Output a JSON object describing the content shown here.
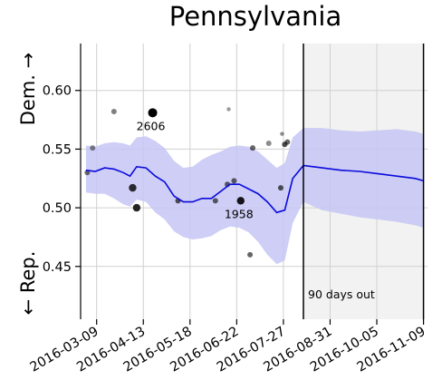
{
  "chart_data": {
    "type": "line",
    "title": "Pennsylvania",
    "ylabel_top": "Dem. →",
    "ylabel_bottom": "← Rep.",
    "ylim": [
      0.405,
      0.64
    ],
    "xlim": [
      "2016-02-26",
      "2016-11-12"
    ],
    "yticks": [
      0.45,
      0.5,
      0.55,
      0.6
    ],
    "ytick_labels": [
      "0.45",
      "0.50",
      "0.55",
      "0.60"
    ],
    "xticks": [
      "2016-03-09",
      "2016-04-13",
      "2016-05-18",
      "2016-06-22",
      "2016-07-27",
      "2016-08-31",
      "2016-10-05",
      "2016-11-09"
    ],
    "grid": true,
    "colors": {
      "line": "#0a0adc",
      "band": "#c6c6f5",
      "shade": "#f2f2f2",
      "points": "#000000"
    },
    "shaded_region": {
      "start": "2016-08-11",
      "end": "2016-11-09",
      "label": "90 days out"
    },
    "series": [
      {
        "x": [
          "2016-03-01",
          "2016-03-08",
          "2016-03-15",
          "2016-03-22",
          "2016-03-29",
          "2016-04-03",
          "2016-04-08",
          "2016-04-15",
          "2016-04-22",
          "2016-04-29",
          "2016-05-06",
          "2016-05-13",
          "2016-05-20",
          "2016-05-27",
          "2016-06-03",
          "2016-06-10",
          "2016-06-17",
          "2016-06-24",
          "2016-07-01",
          "2016-07-08",
          "2016-07-15",
          "2016-07-22",
          "2016-07-28",
          "2016-08-03",
          "2016-08-11",
          "2016-08-25",
          "2016-09-08",
          "2016-09-22",
          "2016-10-06",
          "2016-10-20",
          "2016-11-03",
          "2016-11-09"
        ],
        "y": [
          0.532,
          0.531,
          0.534,
          0.533,
          0.53,
          0.527,
          0.535,
          0.534,
          0.527,
          0.522,
          0.51,
          0.505,
          0.505,
          0.508,
          0.508,
          0.514,
          0.52,
          0.52,
          0.516,
          0.512,
          0.505,
          0.496,
          0.498,
          0.525,
          0.536,
          0.534,
          0.532,
          0.531,
          0.529,
          0.527,
          0.525,
          0.523
        ],
        "lower": [
          0.513,
          0.512,
          0.512,
          0.508,
          0.503,
          0.501,
          0.507,
          0.505,
          0.496,
          0.49,
          0.48,
          0.475,
          0.473,
          0.474,
          0.476,
          0.481,
          0.484,
          0.483,
          0.479,
          0.471,
          0.46,
          0.452,
          0.455,
          0.487,
          0.505,
          0.498,
          0.495,
          0.492,
          0.49,
          0.488,
          0.485,
          0.483
        ],
        "upper": [
          0.553,
          0.552,
          0.555,
          0.556,
          0.555,
          0.553,
          0.56,
          0.561,
          0.557,
          0.551,
          0.54,
          0.534,
          0.535,
          0.541,
          0.545,
          0.548,
          0.552,
          0.553,
          0.552,
          0.548,
          0.541,
          0.534,
          0.538,
          0.56,
          0.568,
          0.568,
          0.566,
          0.565,
          0.566,
          0.567,
          0.565,
          0.563
        ]
      }
    ],
    "points": [
      {
        "x": "2016-03-02",
        "y": 0.53,
        "size": "small",
        "shade": 0.55
      },
      {
        "x": "2016-03-06",
        "y": 0.551,
        "size": "small",
        "shade": 0.45
      },
      {
        "x": "2016-03-22",
        "y": 0.582,
        "size": "small",
        "shade": 0.5
      },
      {
        "x": "2016-04-05",
        "y": 0.517,
        "size": "medium",
        "shade": 0.8
      },
      {
        "x": "2016-04-08",
        "y": 0.5,
        "size": "medium",
        "shade": 0.85
      },
      {
        "x": "2016-04-20",
        "y": 0.581,
        "size": "large",
        "shade": 1.0,
        "label": "2606"
      },
      {
        "x": "2016-05-09",
        "y": 0.506,
        "size": "small",
        "shade": 0.65
      },
      {
        "x": "2016-06-06",
        "y": 0.506,
        "size": "small",
        "shade": 0.6
      },
      {
        "x": "2016-06-15",
        "y": 0.52,
        "size": "small",
        "shade": 0.6
      },
      {
        "x": "2016-06-16",
        "y": 0.584,
        "size": "tiny",
        "shade": 0.4
      },
      {
        "x": "2016-06-20",
        "y": 0.523,
        "size": "small",
        "shade": 0.6
      },
      {
        "x": "2016-06-25",
        "y": 0.506,
        "size": "medium",
        "shade": 0.9,
        "label": "1958"
      },
      {
        "x": "2016-07-02",
        "y": 0.46,
        "size": "small",
        "shade": 0.6
      },
      {
        "x": "2016-07-04",
        "y": 0.551,
        "size": "small",
        "shade": 0.6
      },
      {
        "x": "2016-07-16",
        "y": 0.555,
        "size": "small",
        "shade": 0.45
      },
      {
        "x": "2016-07-25",
        "y": 0.517,
        "size": "small",
        "shade": 0.65
      },
      {
        "x": "2016-07-26",
        "y": 0.563,
        "size": "tiny",
        "shade": 0.45
      },
      {
        "x": "2016-07-28",
        "y": 0.554,
        "size": "small",
        "shade": 0.7
      },
      {
        "x": "2016-07-30",
        "y": 0.556,
        "size": "small",
        "shade": 0.6
      }
    ]
  }
}
